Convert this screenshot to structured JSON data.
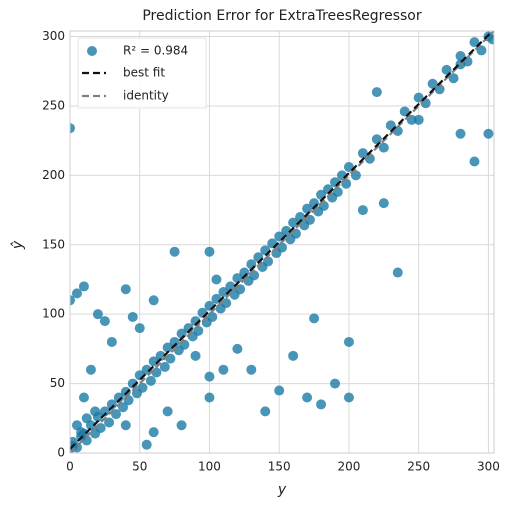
{
  "chart_data": {
    "type": "scatter",
    "title": "Prediction Error for ExtraTreesRegressor",
    "x_label": "y",
    "y_label": "ŷ",
    "xlim": [
      0,
      304
    ],
    "ylim": [
      0,
      304
    ],
    "xticks": [
      0,
      50,
      100,
      150,
      200,
      250,
      300
    ],
    "yticks": [
      0,
      50,
      100,
      150,
      200,
      250,
      300
    ],
    "grid": true,
    "legend": "upper left",
    "series": [
      {
        "name": "R² = 0.984",
        "color": "#1a7aa6",
        "x": [
          0,
          2,
          5,
          8,
          10,
          12,
          15,
          18,
          20,
          22,
          25,
          28,
          30,
          33,
          35,
          38,
          40,
          42,
          45,
          48,
          50,
          52,
          55,
          58,
          60,
          62,
          65,
          68,
          70,
          72,
          75,
          78,
          80,
          82,
          85,
          88,
          90,
          92,
          95,
          98,
          100,
          102,
          105,
          108,
          110,
          112,
          115,
          118,
          120,
          122,
          125,
          128,
          130,
          132,
          135,
          138,
          140,
          142,
          145,
          148,
          150,
          152,
          155,
          158,
          160,
          162,
          165,
          168,
          170,
          172,
          175,
          178,
          180,
          182,
          185,
          188,
          190,
          192,
          195,
          198,
          200,
          205,
          210,
          215,
          220,
          225,
          230,
          235,
          240,
          245,
          250,
          255,
          260,
          265,
          270,
          275,
          280,
          285,
          290,
          295,
          300,
          303,
          0,
          0,
          5,
          10,
          20,
          25,
          40,
          45,
          60,
          75,
          100,
          105,
          120,
          160,
          175,
          200,
          210,
          220,
          225,
          235,
          250,
          280,
          290,
          300,
          280,
          40,
          60,
          70,
          80,
          100,
          110,
          130,
          140,
          150,
          170,
          180,
          190,
          200,
          55,
          90,
          100,
          50,
          30,
          15,
          10,
          5,
          2,
          8,
          12,
          18
        ],
        "values": [
          3,
          8,
          4,
          12,
          14,
          9,
          20,
          14,
          26,
          18,
          30,
          22,
          35,
          28,
          40,
          33,
          44,
          38,
          50,
          43,
          56,
          47,
          60,
          52,
          66,
          58,
          70,
          62,
          76,
          68,
          80,
          74,
          86,
          78,
          90,
          84,
          95,
          88,
          101,
          94,
          106,
          98,
          111,
          104,
          116,
          108,
          120,
          114,
          126,
          118,
          130,
          124,
          136,
          128,
          141,
          134,
          146,
          138,
          151,
          144,
          156,
          148,
          160,
          154,
          166,
          158,
          170,
          164,
          176,
          168,
          180,
          174,
          186,
          178,
          190,
          184,
          195,
          188,
          200,
          194,
          206,
          200,
          216,
          212,
          226,
          220,
          236,
          232,
          246,
          240,
          256,
          252,
          266,
          262,
          276,
          270,
          286,
          282,
          296,
          290,
          300,
          298,
          234,
          110,
          115,
          120,
          100,
          95,
          118,
          98,
          110,
          145,
          145,
          125,
          75,
          70,
          97,
          80,
          175,
          260,
          180,
          130,
          240,
          230,
          210,
          230,
          280,
          20,
          15,
          30,
          20,
          40,
          60,
          60,
          30,
          45,
          40,
          35,
          50,
          40,
          6,
          70,
          55,
          90,
          80,
          60,
          40,
          20,
          5,
          15,
          25,
          30
        ]
      }
    ],
    "lines": [
      {
        "name": "best fit",
        "color": "#111111",
        "x": [
          0,
          304
        ],
        "values": [
          3,
          305
        ]
      },
      {
        "name": "identity",
        "color": "#808080",
        "x": [
          0,
          304
        ],
        "values": [
          0,
          304
        ]
      }
    ]
  }
}
